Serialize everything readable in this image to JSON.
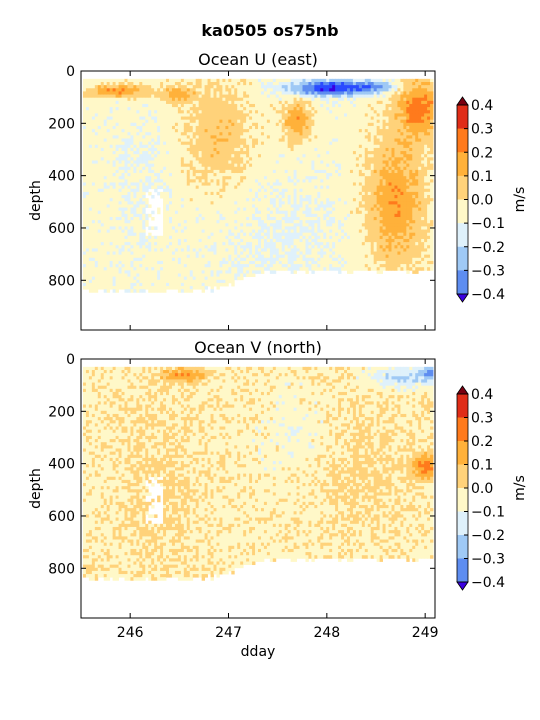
{
  "suptitle": "ka0505 os75nb",
  "colormap": [
    "#3b00e0",
    "#2a4bff",
    "#5e8df0",
    "#9fc9f5",
    "#dff1fb",
    "#fff8c8",
    "#ffd27a",
    "#ffb13a",
    "#ff7a1c",
    "#e02d18",
    "#7a0010"
  ],
  "chart_data": [
    {
      "type": "heatmap",
      "title": "Ocean U (east)",
      "xlabel": "",
      "ylabel": "depth",
      "xlim": [
        245.5,
        249.1
      ],
      "ylim": [
        990,
        0
      ],
      "x_ticks": [
        246,
        247,
        248,
        249
      ],
      "x_tick_labels": [],
      "y_ticks": [
        0,
        200,
        400,
        600,
        800
      ],
      "y_tick_labels": [
        "0",
        "200",
        "400",
        "600",
        "800"
      ],
      "colorbar": {
        "label": "m/s",
        "levels": [
          -0.4,
          -0.3,
          -0.2,
          -0.1,
          0.0,
          0.1,
          0.2,
          0.3,
          0.4
        ],
        "tick_labels": [
          "0.4",
          "0.3",
          "0.2",
          "0.1",
          "0.0",
          "−0.1",
          "−0.2",
          "−0.3",
          "−0.4"
        ],
        "extend": "both"
      },
      "data_x_range": [
        245.52,
        249.08
      ],
      "data_depth_range": [
        30,
        850
      ],
      "grid": false
    },
    {
      "type": "heatmap",
      "title": "Ocean V (north)",
      "xlabel": "dday",
      "ylabel": "depth",
      "xlim": [
        245.5,
        249.1
      ],
      "ylim": [
        990,
        0
      ],
      "x_ticks": [
        246,
        247,
        248,
        249
      ],
      "x_tick_labels": [
        "246",
        "247",
        "248",
        "249"
      ],
      "y_ticks": [
        0,
        200,
        400,
        600,
        800
      ],
      "y_tick_labels": [
        "0",
        "200",
        "400",
        "600",
        "800"
      ],
      "colorbar": {
        "label": "m/s",
        "levels": [
          -0.4,
          -0.3,
          -0.2,
          -0.1,
          0.0,
          0.1,
          0.2,
          0.3,
          0.4
        ],
        "tick_labels": [
          "0.4",
          "0.3",
          "0.2",
          "0.1",
          "0.0",
          "−0.1",
          "−0.2",
          "−0.3",
          "−0.4"
        ],
        "extend": "both"
      },
      "data_x_range": [
        245.52,
        249.08
      ],
      "data_depth_range": [
        30,
        850
      ],
      "grid": false
    }
  ]
}
